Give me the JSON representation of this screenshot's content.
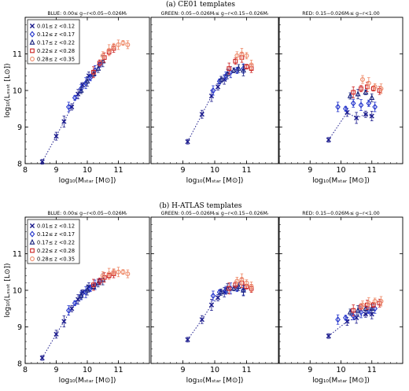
{
  "figures": [
    {
      "caption": "(a) CE01 templates"
    },
    {
      "caption": "(b) H-ATLAS templates"
    }
  ],
  "panel_titles": [
    "BLUE: 0.00≤ g−r<0.05−0.026Mᵣ",
    "GREEN: 0.05−0.026Mᵣ≤ g−r<0.15−0.026Mᵣ",
    "RED: 0.15−0.026Mᵣ≤ g−r<1.00"
  ],
  "axes": {
    "xlabel": "log₁₀(Mₛₜₐᵣ [M⊙])",
    "ylabel": "log₁₀(Lₓᵤₛₜ [L⊙])",
    "xlim": [
      8,
      12
    ],
    "ylim": [
      8,
      12
    ],
    "xticks": [
      "8",
      "9",
      "10",
      "11"
    ],
    "yticks": [
      "8",
      "9",
      "10",
      "11"
    ]
  },
  "legend": [
    {
      "label": "0.01≤ z <0.12",
      "color": "#1a1a8c",
      "marker": "x"
    },
    {
      "label": "0.12≤ z <0.17",
      "color": "#2233cc",
      "marker": "diamond"
    },
    {
      "label": "0.17≤ z <0.22",
      "color": "#1a237e",
      "marker": "triangle"
    },
    {
      "label": "0.22≤ z <0.28",
      "color": "#cc2222",
      "marker": "square"
    },
    {
      "label": "0.28≤ z <0.35",
      "color": "#ee8866",
      "marker": "circle"
    }
  ],
  "chart_data": [
    {
      "type": "scatter",
      "figure": "a",
      "panel": "BLUE",
      "series": [
        {
          "name": "0.01≤ z <0.12",
          "x": [
            8.55,
            9.0,
            9.25,
            9.5,
            9.7,
            9.85,
            10.05
          ],
          "y": [
            8.05,
            8.75,
            9.15,
            9.55,
            9.9,
            10.15,
            10.4
          ]
        },
        {
          "name": "0.12≤ z <0.17",
          "x": [
            9.4,
            9.6,
            9.8,
            9.95,
            10.1,
            10.25,
            10.4
          ],
          "y": [
            9.55,
            9.8,
            10.05,
            10.2,
            10.35,
            10.55,
            10.7
          ]
        },
        {
          "name": "0.17≤ z <0.22",
          "x": [
            9.8,
            10.0,
            10.2,
            10.35,
            10.5
          ],
          "y": [
            10.0,
            10.25,
            10.45,
            10.6,
            10.8
          ]
        },
        {
          "name": "0.22≤ z <0.28",
          "x": [
            10.2,
            10.4,
            10.55,
            10.7,
            10.85
          ],
          "y": [
            10.5,
            10.75,
            10.9,
            11.05,
            11.15
          ]
        },
        {
          "name": "0.28≤ z <0.35",
          "x": [
            10.5,
            10.7,
            10.85,
            11.0,
            11.15,
            11.3
          ],
          "y": [
            10.95,
            11.1,
            11.2,
            11.25,
            11.3,
            11.25
          ]
        }
      ]
    },
    {
      "type": "scatter",
      "figure": "a",
      "panel": "GREEN",
      "series": [
        {
          "name": "0.01≤ z <0.12",
          "x": [
            9.15,
            9.6,
            9.9,
            10.1,
            10.3
          ],
          "y": [
            8.6,
            9.35,
            9.85,
            10.1,
            10.3
          ]
        },
        {
          "name": "0.12≤ z <0.17",
          "x": [
            9.95,
            10.15,
            10.35,
            10.5,
            10.7,
            10.9
          ],
          "y": [
            10.0,
            10.25,
            10.4,
            10.5,
            10.55,
            10.6
          ]
        },
        {
          "name": "0.17≤ z <0.22",
          "x": [
            10.2,
            10.4,
            10.6,
            10.75,
            10.9
          ],
          "y": [
            10.3,
            10.45,
            10.55,
            10.6,
            10.55
          ]
        },
        {
          "name": "0.22≤ z <0.28",
          "x": [
            10.45,
            10.65,
            10.85,
            11.0,
            11.15
          ],
          "y": [
            10.6,
            10.8,
            10.9,
            10.65,
            10.6
          ]
        },
        {
          "name": "0.28≤ z <0.35",
          "x": [
            10.7,
            10.85,
            11.0,
            11.15
          ],
          "y": [
            10.95,
            11.0,
            10.95,
            10.7
          ]
        }
      ]
    },
    {
      "type": "scatter",
      "figure": "a",
      "panel": "RED",
      "series": [
        {
          "name": "0.01≤ z <0.12",
          "x": [
            9.6,
            10.2,
            10.5,
            10.8,
            11.0
          ],
          "y": [
            8.65,
            9.4,
            9.25,
            9.35,
            9.3
          ]
        },
        {
          "name": "0.12≤ z <0.17",
          "x": [
            9.9,
            10.15,
            10.4,
            10.65,
            10.9,
            11.1
          ],
          "y": [
            9.55,
            9.5,
            9.65,
            9.6,
            9.65,
            9.55
          ]
        },
        {
          "name": "0.17≤ z <0.22",
          "x": [
            10.3,
            10.55,
            10.8,
            11.0
          ],
          "y": [
            9.85,
            9.9,
            9.95,
            9.8
          ]
        },
        {
          "name": "0.22≤ z <0.28",
          "x": [
            10.4,
            10.65,
            10.85,
            11.05,
            11.25
          ],
          "y": [
            9.95,
            10.05,
            10.1,
            10.05,
            10.0
          ]
        },
        {
          "name": "0.28≤ z <0.35",
          "x": [
            10.7,
            10.9,
            11.1,
            11.3
          ],
          "y": [
            10.3,
            10.2,
            10.1,
            10.05
          ]
        }
      ]
    },
    {
      "type": "scatter",
      "figure": "b",
      "panel": "BLUE",
      "series": [
        {
          "name": "0.01≤ z <0.12",
          "x": [
            8.55,
            9.0,
            9.25,
            9.5,
            9.7,
            9.85,
            10.05
          ],
          "y": [
            8.15,
            8.8,
            9.15,
            9.5,
            9.75,
            9.95,
            10.1
          ]
        },
        {
          "name": "0.12≤ z <0.17",
          "x": [
            9.4,
            9.6,
            9.8,
            9.95,
            10.1,
            10.25,
            10.4
          ],
          "y": [
            9.45,
            9.65,
            9.85,
            9.95,
            10.05,
            10.15,
            10.25
          ]
        },
        {
          "name": "0.17≤ z <0.22",
          "x": [
            9.8,
            10.0,
            10.2,
            10.35,
            10.5
          ],
          "y": [
            9.85,
            10.0,
            10.1,
            10.2,
            10.3
          ]
        },
        {
          "name": "0.22≤ z <0.28",
          "x": [
            10.2,
            10.4,
            10.55,
            10.7,
            10.85
          ],
          "y": [
            10.15,
            10.25,
            10.35,
            10.4,
            10.45
          ]
        },
        {
          "name": "0.28≤ z <0.35",
          "x": [
            10.5,
            10.7,
            10.85,
            11.0,
            11.15,
            11.3
          ],
          "y": [
            10.4,
            10.45,
            10.5,
            10.5,
            10.5,
            10.45
          ]
        }
      ]
    },
    {
      "type": "scatter",
      "figure": "b",
      "panel": "GREEN",
      "series": [
        {
          "name": "0.01≤ z <0.12",
          "x": [
            9.15,
            9.6,
            9.9,
            10.1,
            10.3
          ],
          "y": [
            8.65,
            9.2,
            9.6,
            9.8,
            9.95
          ]
        },
        {
          "name": "0.12≤ z <0.17",
          "x": [
            9.95,
            10.15,
            10.35,
            10.5,
            10.7,
            10.9
          ],
          "y": [
            9.85,
            9.95,
            10.0,
            10.05,
            10.05,
            10.0
          ]
        },
        {
          "name": "0.17≤ z <0.22",
          "x": [
            10.2,
            10.4,
            10.6,
            10.75,
            10.9
          ],
          "y": [
            9.95,
            10.05,
            10.05,
            10.1,
            10.0
          ]
        },
        {
          "name": "0.22≤ z <0.28",
          "x": [
            10.45,
            10.65,
            10.85,
            11.0,
            11.15
          ],
          "y": [
            10.05,
            10.15,
            10.2,
            10.1,
            10.05
          ]
        },
        {
          "name": "0.28≤ z <0.35",
          "x": [
            10.7,
            10.85,
            11.0,
            11.15
          ],
          "y": [
            10.25,
            10.3,
            10.2,
            10.1
          ]
        }
      ]
    },
    {
      "type": "scatter",
      "figure": "b",
      "panel": "RED",
      "series": [
        {
          "name": "0.01≤ z <0.12",
          "x": [
            9.6,
            10.2,
            10.5,
            10.8,
            11.0
          ],
          "y": [
            8.75,
            9.15,
            9.25,
            9.35,
            9.35
          ]
        },
        {
          "name": "0.12≤ z <0.17",
          "x": [
            9.9,
            10.15,
            10.4,
            10.65,
            10.9,
            11.1
          ],
          "y": [
            9.2,
            9.25,
            9.3,
            9.4,
            9.45,
            9.5
          ]
        },
        {
          "name": "0.17≤ z <0.22",
          "x": [
            10.3,
            10.55,
            10.8,
            11.0
          ],
          "y": [
            9.4,
            9.45,
            9.5,
            9.5
          ]
        },
        {
          "name": "0.22≤ z <0.28",
          "x": [
            10.4,
            10.65,
            10.85,
            11.05,
            11.25
          ],
          "y": [
            9.45,
            9.55,
            9.6,
            9.6,
            9.65
          ]
        },
        {
          "name": "0.28≤ z <0.35",
          "x": [
            10.7,
            10.9,
            11.1,
            11.3
          ],
          "y": [
            9.6,
            9.65,
            9.7,
            9.7
          ]
        }
      ]
    }
  ]
}
